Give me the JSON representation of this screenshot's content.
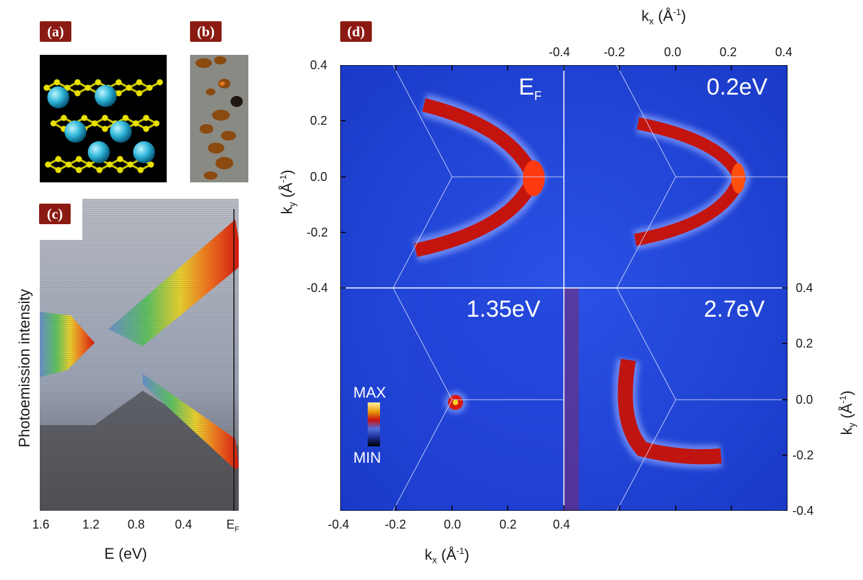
{
  "panels": {
    "a": "(a)",
    "b": "(b)",
    "c": "(c)",
    "d": "(d)"
  },
  "panel_c": {
    "ylabel": "Photoemission intensity",
    "xlabel": "E (eV)",
    "xticks": [
      "1.6",
      "1.2",
      "0.8",
      "0.4",
      "E"
    ],
    "ef_subscript": "F"
  },
  "panel_d": {
    "top_axis_label": "k",
    "top_axis_sub": "x",
    "top_axis_unit": " (Å",
    "unit_exp": "-1",
    "unit_close": ")",
    "top_ticks": [
      "-0.4",
      "-0.2",
      "0.0",
      "0.2",
      "0.4"
    ],
    "bottom_ticks": [
      "-0.4",
      "-0.2",
      "0.0",
      "0.2",
      "0.4"
    ],
    "bottom_axis_sub": "x",
    "left_axis_sub": "y",
    "right_axis_sub": "y",
    "left_ticks": [
      "0.4",
      "0.2",
      "0.0",
      "-0.2",
      "-0.4"
    ],
    "right_ticks": [
      "0.4",
      "0.2",
      "0.0",
      "-0.2",
      "-0.4"
    ],
    "maps": [
      {
        "label": "E",
        "sub": "F"
      },
      {
        "label": "0.2eV",
        "sub": ""
      },
      {
        "label": "1.35eV",
        "sub": ""
      },
      {
        "label": "2.7eV",
        "sub": ""
      }
    ],
    "colorbar_max": "MAX",
    "colorbar_min": "MIN"
  },
  "colors": {
    "label_bg": "#8b1a12",
    "map_blue": "#1f3fd6",
    "band_red": "#c81010",
    "atom_cyan": "#2fb6d8",
    "atom_yellow": "#e2e000"
  }
}
